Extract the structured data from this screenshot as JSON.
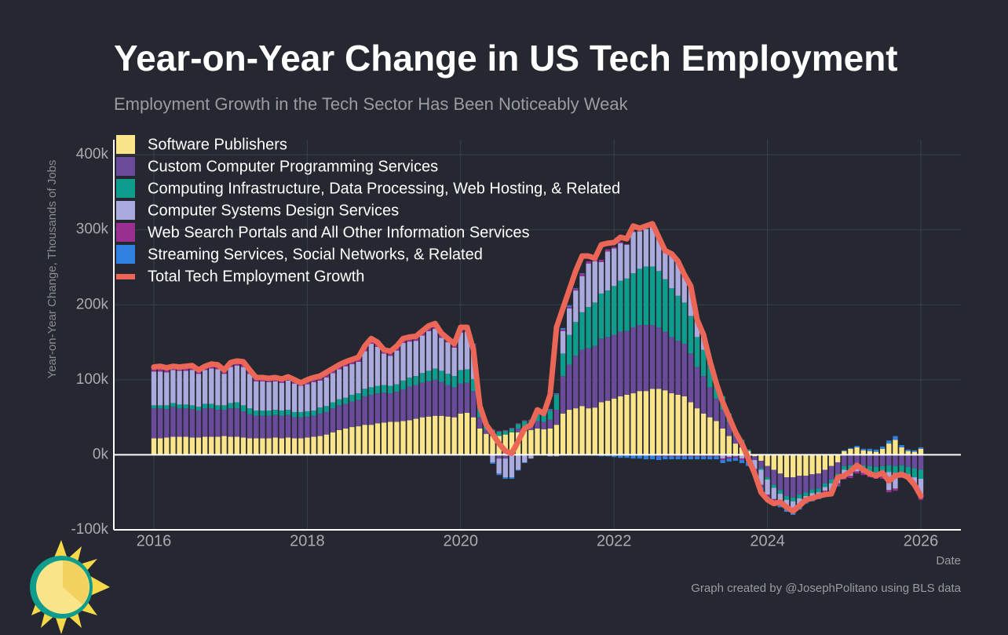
{
  "chart_data": {
    "type": "bar",
    "stacked": true,
    "title": "Year-on-Year Change in US Tech Employment",
    "subtitle": "Employment Growth in the Tech Sector Has Been Noticeably Weak",
    "y_label": "Year-on-Year Change, Thousands of Jobs",
    "x_label": "Date",
    "caption": "Graph created by @JosephPolitano using BLS data",
    "legend": "top-left",
    "grid": true,
    "ylim": [
      -100,
      420
    ],
    "yticks": [
      {
        "value": -100,
        "label": "-100k"
      },
      {
        "value": 0,
        "label": "0k"
      },
      {
        "value": 100,
        "label": "100k"
      },
      {
        "value": 200,
        "label": "200k"
      },
      {
        "value": 300,
        "label": "300k"
      },
      {
        "value": 400,
        "label": "400k"
      }
    ],
    "categories": [
      "2016",
      null,
      null,
      null,
      null,
      null,
      null,
      null,
      null,
      null,
      null,
      null,
      null,
      null,
      null,
      null,
      null,
      null,
      null,
      null,
      null,
      null,
      null,
      null,
      "2018",
      null,
      null,
      null,
      null,
      null,
      null,
      null,
      null,
      null,
      null,
      null,
      null,
      null,
      null,
      null,
      null,
      null,
      null,
      null,
      null,
      null,
      null,
      null,
      "2020",
      null,
      null,
      null,
      null,
      null,
      null,
      null,
      null,
      null,
      null,
      null,
      null,
      null,
      null,
      null,
      null,
      null,
      null,
      null,
      null,
      null,
      null,
      null,
      "2022",
      null,
      null,
      null,
      null,
      null,
      null,
      null,
      null,
      null,
      null,
      null,
      null,
      null,
      null,
      null,
      null,
      null,
      null,
      null,
      null,
      null,
      null,
      null,
      "2024",
      null,
      null,
      null,
      null,
      null,
      null,
      null,
      null,
      null,
      null,
      null,
      null,
      null,
      null,
      null,
      null,
      null,
      null,
      null,
      null,
      null,
      null,
      null,
      "2026"
    ],
    "series": [
      {
        "name": "Software Publishers",
        "color": "#fbe58b",
        "values": [
          22,
          22,
          23,
          24,
          24,
          24,
          23,
          23,
          24,
          24,
          24,
          25,
          24,
          24,
          23,
          22,
          22,
          22,
          22,
          23,
          22,
          23,
          22,
          22,
          23,
          24,
          25,
          27,
          30,
          33,
          35,
          37,
          38,
          40,
          40,
          42,
          43,
          44,
          44,
          45,
          46,
          48,
          50,
          51,
          52,
          52,
          51,
          50,
          55,
          56,
          50,
          35,
          28,
          25,
          25,
          27,
          30,
          30,
          32,
          33,
          35,
          34,
          35,
          40,
          55,
          60,
          62,
          65,
          62,
          63,
          70,
          72,
          75,
          78,
          80,
          82,
          85,
          85,
          88,
          88,
          86,
          82,
          80,
          78,
          70,
          62,
          55,
          50,
          45,
          35,
          25,
          15,
          10,
          5,
          -2,
          -8,
          -15,
          -20,
          -25,
          -30,
          -30,
          -28,
          -28,
          -26,
          -25,
          -20,
          -15,
          -10,
          5,
          8,
          10,
          6,
          5,
          4,
          8,
          15,
          20,
          10,
          5,
          4,
          8
        ]
      },
      {
        "name": "Custom Computer Programming Services",
        "color": "#6a4b9b",
        "values": [
          40,
          40,
          38,
          40,
          38,
          38,
          38,
          36,
          38,
          38,
          36,
          35,
          38,
          38,
          35,
          32,
          30,
          30,
          30,
          30,
          30,
          30,
          28,
          28,
          28,
          28,
          30,
          30,
          32,
          33,
          33,
          34,
          35,
          38,
          40,
          40,
          40,
          38,
          40,
          42,
          45,
          45,
          46,
          47,
          48,
          45,
          42,
          40,
          40,
          40,
          35,
          15,
          5,
          0,
          -5,
          -5,
          0,
          5,
          5,
          5,
          10,
          10,
          12,
          20,
          50,
          60,
          70,
          75,
          80,
          82,
          85,
          85,
          85,
          86,
          85,
          88,
          88,
          88,
          85,
          82,
          78,
          75,
          72,
          70,
          65,
          55,
          50,
          40,
          30,
          25,
          18,
          10,
          5,
          0,
          -5,
          -10,
          -15,
          -20,
          -22,
          -25,
          -27,
          -25,
          -22,
          -20,
          -20,
          -18,
          -18,
          -15,
          -15,
          -14,
          -13,
          -14,
          -15,
          -16,
          -15,
          -14,
          -15,
          -14,
          -16,
          -18,
          -20
        ]
      },
      {
        "name": "Computing Infrastructure, Data Processing, Web Hosting, & Related",
        "color": "#0e9c8c",
        "values": [
          4,
          4,
          5,
          5,
          5,
          5,
          5,
          5,
          6,
          6,
          6,
          6,
          7,
          8,
          8,
          8,
          7,
          7,
          7,
          7,
          7,
          7,
          7,
          7,
          7,
          7,
          8,
          8,
          8,
          8,
          8,
          9,
          9,
          10,
          10,
          10,
          10,
          10,
          10,
          12,
          12,
          12,
          13,
          14,
          15,
          15,
          15,
          15,
          18,
          18,
          16,
          12,
          10,
          8,
          6,
          5,
          5,
          6,
          8,
          8,
          10,
          10,
          12,
          20,
          30,
          40,
          45,
          50,
          55,
          58,
          60,
          62,
          65,
          68,
          70,
          72,
          75,
          78,
          78,
          75,
          70,
          65,
          60,
          55,
          50,
          40,
          35,
          30,
          22,
          18,
          12,
          8,
          5,
          2,
          0,
          -2,
          -3,
          -4,
          -5,
          -5,
          -5,
          -5,
          -5,
          -5,
          -5,
          -5,
          -5,
          -5,
          -5,
          -6,
          -6,
          -7,
          -7,
          -8,
          -8,
          -9,
          -9,
          -10,
          -10,
          -12,
          -12
        ]
      },
      {
        "name": "Computer Systems Design Services",
        "color": "#abaade",
        "values": [
          45,
          45,
          44,
          44,
          45,
          45,
          47,
          44,
          45,
          47,
          48,
          42,
          48,
          49,
          51,
          46,
          39,
          39,
          38,
          38,
          37,
          39,
          38,
          35,
          36,
          38,
          36,
          38,
          39,
          40,
          42,
          41,
          42,
          50,
          58,
          52,
          42,
          40,
          45,
          50,
          48,
          47,
          50,
          53,
          53,
          44,
          42,
          38,
          50,
          50,
          42,
          5,
          0,
          -10,
          -20,
          -25,
          -30,
          -20,
          -10,
          -5,
          5,
          0,
          -2,
          -2,
          30,
          35,
          42,
          48,
          58,
          55,
          42,
          52,
          50,
          50,
          45,
          55,
          50,
          50,
          53,
          45,
          38,
          46,
          46,
          37,
          40,
          23,
          20,
          5,
          0,
          -5,
          -3,
          -2,
          -5,
          -8,
          -12,
          -20,
          -20,
          -15,
          -10,
          -8,
          -10,
          -8,
          -3,
          -5,
          -3,
          -5,
          -10,
          -8,
          -10,
          -8,
          -3,
          -3,
          -5,
          -5,
          -6,
          -24,
          -21,
          -4,
          -4,
          -8,
          -24
        ]
      },
      {
        "name": "Web Search Portals and All Other Information Services",
        "color": "#9a2f8f",
        "values": [
          3,
          3,
          3,
          3,
          3,
          4,
          4,
          3,
          3,
          4,
          4,
          3,
          4,
          4,
          5,
          4,
          3,
          3,
          3,
          3,
          3,
          3,
          3,
          2,
          3,
          3,
          3,
          4,
          4,
          4,
          4,
          4,
          4,
          5,
          5,
          5,
          5,
          5,
          5,
          5,
          5,
          5,
          5,
          6,
          6,
          5,
          5,
          5,
          5,
          4,
          4,
          2,
          1,
          1,
          1,
          1,
          1,
          1,
          1,
          1,
          1,
          1,
          1,
          1,
          2,
          2,
          2,
          3,
          3,
          3,
          3,
          3,
          2,
          2,
          1,
          1,
          0,
          -1,
          -1,
          -2,
          -2,
          -2,
          -2,
          -2,
          -2,
          -2,
          -2,
          -2,
          -2,
          -2,
          -2,
          -2,
          -2,
          -2,
          -3,
          -3,
          -3,
          -3,
          -3,
          -3,
          -3,
          -3,
          -3,
          -3,
          -3,
          -3,
          -3,
          -3,
          -3,
          -3,
          -3,
          -3,
          -3,
          -3,
          -3,
          -3,
          -3,
          -3,
          -3,
          -4,
          -4
        ]
      },
      {
        "name": "Streaming Services, Social Networks, & Related",
        "color": "#2f80e0",
        "values": [
          2,
          2,
          2,
          2,
          2,
          2,
          2,
          2,
          2,
          2,
          2,
          2,
          2,
          2,
          2,
          2,
          2,
          2,
          2,
          2,
          2,
          2,
          2,
          2,
          2,
          2,
          2,
          2,
          2,
          2,
          2,
          2,
          2,
          2,
          2,
          2,
          2,
          2,
          2,
          2,
          2,
          2,
          2,
          2,
          2,
          2,
          2,
          2,
          2,
          2,
          1,
          0,
          -1,
          -2,
          -2,
          -2,
          -2,
          -1,
          -1,
          0,
          0,
          0,
          1,
          1,
          2,
          2,
          1,
          1,
          0,
          -1,
          -2,
          -2,
          -3,
          -4,
          -4,
          -5,
          -5,
          -5,
          -5,
          -5,
          -4,
          -4,
          -4,
          -4,
          -4,
          -4,
          -4,
          -4,
          -4,
          -4,
          -4,
          -4,
          -4,
          -5,
          -5,
          -5,
          -5,
          -5,
          -5,
          -5,
          -5,
          -4,
          -4,
          -3,
          -3,
          -2,
          -2,
          -1,
          1,
          1,
          2,
          2,
          3,
          3,
          3,
          4,
          5,
          3,
          2,
          2,
          2
        ]
      },
      {
        "name": "Total Tech Employment Growth",
        "type": "line",
        "color": "#ec6657",
        "values": [
          117,
          118,
          116,
          118,
          117,
          118,
          119,
          113,
          118,
          121,
          120,
          113,
          123,
          125,
          124,
          113,
          103,
          103,
          102,
          103,
          101,
          104,
          100,
          96,
          100,
          103,
          105,
          110,
          115,
          120,
          124,
          127,
          130,
          145,
          155,
          150,
          140,
          138,
          145,
          155,
          157,
          158,
          165,
          172,
          175,
          162,
          155,
          148,
          170,
          170,
          140,
          65,
          40,
          28,
          15,
          5,
          2,
          18,
          35,
          40,
          60,
          55,
          80,
          170,
          195,
          220,
          245,
          265,
          265,
          262,
          280,
          282,
          283,
          290,
          288,
          305,
          302,
          305,
          308,
          290,
          272,
          268,
          258,
          240,
          225,
          180,
          160,
          125,
          95,
          70,
          50,
          30,
          15,
          -5,
          -25,
          -50,
          -60,
          -65,
          -63,
          -70,
          -75,
          -68,
          -60,
          -58,
          -55,
          -53,
          -52,
          -30,
          -28,
          -22,
          -14,
          -20,
          -25,
          -28,
          -24,
          -35,
          -28,
          -26,
          -30,
          -40,
          -55
        ]
      }
    ]
  }
}
